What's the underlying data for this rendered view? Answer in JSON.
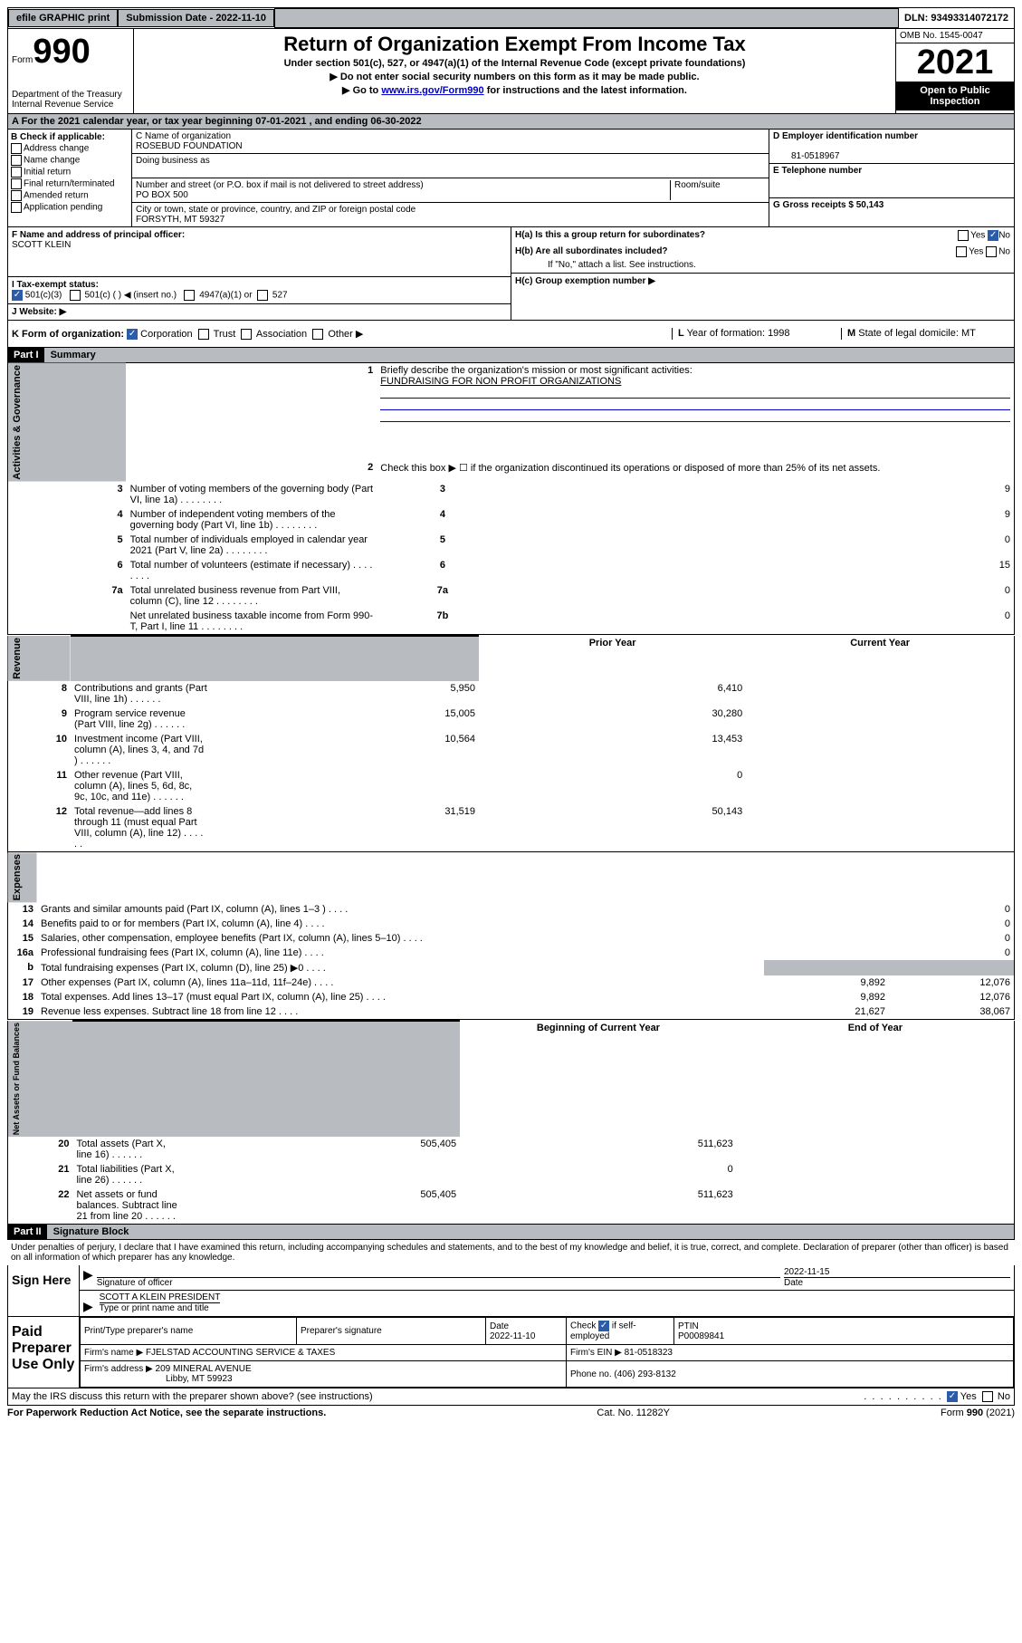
{
  "topbar": {
    "efile": "efile GRAPHIC print",
    "sub_label": "Submission Date - 2022-11-10",
    "dln": "DLN: 93493314072172"
  },
  "header": {
    "form_label": "Form",
    "form_num": "990",
    "title": "Return of Organization Exempt From Income Tax",
    "sub1": "Under section 501(c), 527, or 4947(a)(1) of the Internal Revenue Code (except private foundations)",
    "sub2": "▶ Do not enter social security numbers on this form as it may be made public.",
    "sub3_pre": "▶ Go to ",
    "sub3_link": "www.irs.gov/Form990",
    "sub3_post": " for instructions and the latest information.",
    "dept": "Department of the Treasury\nInternal Revenue Service",
    "omb": "OMB No. 1545-0047",
    "year": "2021",
    "open": "Open to Public Inspection"
  },
  "period": {
    "text": "A For the 2021 calendar year, or tax year beginning 07-01-2021   , and ending 06-30-2022"
  },
  "sectionB": {
    "label": "B Check if applicable:",
    "opts": [
      "Address change",
      "Name change",
      "Initial return",
      "Final return/terminated",
      "Amended return",
      "Application pending"
    ]
  },
  "sectionC": {
    "name_label": "C Name of organization",
    "name": "ROSEBUD FOUNDATION",
    "dba_label": "Doing business as",
    "addr_label": "Number and street (or P.O. box if mail is not delivered to street address)",
    "room_label": "Room/suite",
    "addr": "PO BOX 500",
    "city_label": "City or town, state or province, country, and ZIP or foreign postal code",
    "city": "FORSYTH, MT  59327"
  },
  "sectionD": {
    "label": "D Employer identification number",
    "ein": "81-0518967",
    "tel_label": "E Telephone number",
    "gross_label": "G Gross receipts $ 50,143"
  },
  "sectionF": {
    "label": "F  Name and address of principal officer:",
    "name": "SCOTT KLEIN"
  },
  "sectionH": {
    "ha": "H(a)  Is this a group return for subordinates?",
    "hb": "H(b)  Are all subordinates included?",
    "hb_note": "If \"No,\" attach a list. See instructions.",
    "hc": "H(c)  Group exemption number ▶",
    "yes": "Yes",
    "no": "No"
  },
  "taxExempt": {
    "i_label": "I   Tax-exempt status:",
    "opt1": "501(c)(3)",
    "opt2": "501(c) (  ) ◀ (insert no.)",
    "opt3": "4947(a)(1) or",
    "opt4": "527",
    "j_label": "J   Website: ▶"
  },
  "formOrg": {
    "k_label": "K Form of organization:",
    "opts": [
      "Corporation",
      "Trust",
      "Association",
      "Other ▶"
    ],
    "l_label": "L Year of formation: 1998",
    "m_label": "M State of legal domicile: MT"
  },
  "part1": {
    "header": "Part I",
    "title": "Summary",
    "vert1": "Activities & Governance",
    "vert2": "Revenue",
    "vert3": "Expenses",
    "vert4": "Net Assets or Fund Balances",
    "line1_label": "Briefly describe the organization's mission or most significant activities:",
    "line1_text": "FUNDRAISING FOR NON PROFIT ORGANIZATIONS",
    "line2": "Check this box ▶ ☐  if the organization discontinued its operations or disposed of more than 25% of its net assets.",
    "lines_gov": [
      {
        "n": "3",
        "t": "Number of voting members of the governing body (Part VI, line 1a)",
        "box": "3",
        "v": "9"
      },
      {
        "n": "4",
        "t": "Number of independent voting members of the governing body (Part VI, line 1b)",
        "box": "4",
        "v": "9"
      },
      {
        "n": "5",
        "t": "Total number of individuals employed in calendar year 2021 (Part V, line 2a)",
        "box": "5",
        "v": "0"
      },
      {
        "n": "6",
        "t": "Total number of volunteers (estimate if necessary)",
        "box": "6",
        "v": "15"
      },
      {
        "n": "7a",
        "t": "Total unrelated business revenue from Part VIII, column (C), line 12",
        "box": "7a",
        "v": "0"
      },
      {
        "n": "",
        "t": "Net unrelated business taxable income from Form 990-T, Part I, line 11",
        "box": "7b",
        "v": "0"
      }
    ],
    "col_prior": "Prior Year",
    "col_current": "Current Year",
    "lines_rev": [
      {
        "n": "8",
        "t": "Contributions and grants (Part VIII, line 1h)",
        "p": "5,950",
        "c": "6,410"
      },
      {
        "n": "9",
        "t": "Program service revenue (Part VIII, line 2g)",
        "p": "15,005",
        "c": "30,280"
      },
      {
        "n": "10",
        "t": "Investment income (Part VIII, column (A), lines 3, 4, and 7d )",
        "p": "10,564",
        "c": "13,453"
      },
      {
        "n": "11",
        "t": "Other revenue (Part VIII, column (A), lines 5, 6d, 8c, 9c, 10c, and 11e)",
        "p": "",
        "c": "0"
      },
      {
        "n": "12",
        "t": "Total revenue—add lines 8 through 11 (must equal Part VIII, column (A), line 12)",
        "p": "31,519",
        "c": "50,143"
      }
    ],
    "lines_exp": [
      {
        "n": "13",
        "t": "Grants and similar amounts paid (Part IX, column (A), lines 1–3 )",
        "p": "",
        "c": "0"
      },
      {
        "n": "14",
        "t": "Benefits paid to or for members (Part IX, column (A), line 4)",
        "p": "",
        "c": "0"
      },
      {
        "n": "15",
        "t": "Salaries, other compensation, employee benefits (Part IX, column (A), lines 5–10)",
        "p": "",
        "c": "0"
      },
      {
        "n": "16a",
        "t": "Professional fundraising fees (Part IX, column (A), line 11e)",
        "p": "",
        "c": "0"
      },
      {
        "n": "b",
        "t": "Total fundraising expenses (Part IX, column (D), line 25) ▶0",
        "p": "GRAY",
        "c": "GRAY"
      },
      {
        "n": "17",
        "t": "Other expenses (Part IX, column (A), lines 11a–11d, 11f–24e)",
        "p": "9,892",
        "c": "12,076"
      },
      {
        "n": "18",
        "t": "Total expenses. Add lines 13–17 (must equal Part IX, column (A), line 25)",
        "p": "9,892",
        "c": "12,076"
      },
      {
        "n": "19",
        "t": "Revenue less expenses. Subtract line 18 from line 12",
        "p": "21,627",
        "c": "38,067"
      }
    ],
    "col_begin": "Beginning of Current Year",
    "col_end": "End of Year",
    "lines_net": [
      {
        "n": "20",
        "t": "Total assets (Part X, line 16)",
        "p": "505,405",
        "c": "511,623"
      },
      {
        "n": "21",
        "t": "Total liabilities (Part X, line 26)",
        "p": "",
        "c": "0"
      },
      {
        "n": "22",
        "t": "Net assets or fund balances. Subtract line 21 from line 20",
        "p": "505,405",
        "c": "511,623"
      }
    ]
  },
  "part2": {
    "header": "Part II",
    "title": "Signature Block",
    "declare": "Under penalties of perjury, I declare that I have examined this return, including accompanying schedules and statements, and to the best of my knowledge and belief, it is true, correct, and complete. Declaration of preparer (other than officer) is based on all information of which preparer has any knowledge.",
    "sign_here": "Sign Here",
    "sig_officer": "Signature of officer",
    "date": "Date",
    "sig_date": "2022-11-15",
    "officer_name": "SCOTT A KLEIN  PRESIDENT",
    "type_name": "Type or print name and title",
    "paid_prep": "Paid Preparer Use Only",
    "print_name": "Print/Type preparer's name",
    "prep_sig": "Preparer's signature",
    "prep_date_label": "Date",
    "prep_date": "2022-11-10",
    "check_if": "Check ☑ if self-employed",
    "ptin_label": "PTIN",
    "ptin": "P00089841",
    "firm_name_label": "Firm's name    ▶",
    "firm_name": "FJELSTAD ACCOUNTING SERVICE & TAXES",
    "firm_ein_label": "Firm's EIN ▶",
    "firm_ein": "81-0518323",
    "firm_addr_label": "Firm's address ▶",
    "firm_addr1": "209 MINERAL AVENUE",
    "firm_addr2": "Libby, MT  59923",
    "phone_label": "Phone no.",
    "phone": "(406) 293-8132",
    "discuss": "May the IRS discuss this return with the preparer shown above? (see instructions)"
  },
  "footer": {
    "left": "For Paperwork Reduction Act Notice, see the separate instructions.",
    "mid": "Cat. No. 11282Y",
    "right": "Form 990 (2021)"
  }
}
